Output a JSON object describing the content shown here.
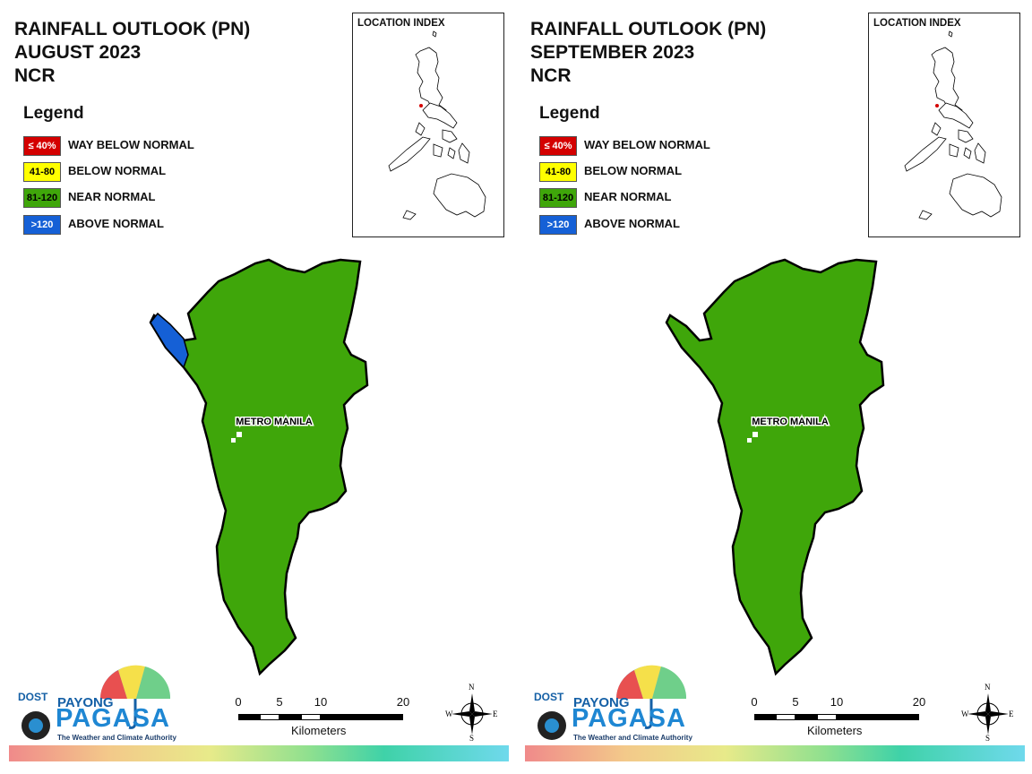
{
  "panels": [
    {
      "title_line1": "RAINFALL OUTLOOK (PN)",
      "title_line2": "AUGUST 2023",
      "title_line3": "NCR",
      "index_title": "LOCATION INDEX",
      "region_label": "METRO MANILA",
      "ncr_category": "NEAR NORMAL",
      "northwest_patch_category": "ABOVE NORMAL"
    },
    {
      "title_line1": "RAINFALL OUTLOOK (PN)",
      "title_line2": "SEPTEMBER 2023",
      "title_line3": "NCR",
      "index_title": "LOCATION INDEX",
      "region_label": "METRO MANILA",
      "ncr_category": "NEAR NORMAL",
      "northwest_patch_category": "NEAR NORMAL"
    }
  ],
  "legend": {
    "title": "Legend",
    "items": [
      {
        "range": "≤ 40%",
        "label": "WAY BELOW NORMAL",
        "color": "#d40000",
        "text_color": "#ffffff"
      },
      {
        "range": "41-80",
        "label": "BELOW NORMAL",
        "color": "#ffff00",
        "text_color": "#000000"
      },
      {
        "range": "81-120",
        "label": "NEAR NORMAL",
        "color": "#3fa60a",
        "text_color": "#000000"
      },
      {
        "range": ">120",
        "label": "ABOVE NORMAL",
        "color": "#1560d6",
        "text_color": "#ffffff"
      }
    ]
  },
  "scale": {
    "ticks": [
      "0",
      "5",
      "10",
      "20"
    ],
    "unit": "Kilometers"
  },
  "compass": {
    "n": "N",
    "s": "S",
    "e": "E",
    "w": "W"
  },
  "logo": {
    "org": "DOST",
    "line1": "PAYONG",
    "line2": "PAGASA",
    "tagline": "The Weather and Climate Authority"
  },
  "colors": {
    "near_normal": "#3fa60a",
    "above_normal": "#1560d6",
    "outline": "#000000"
  }
}
